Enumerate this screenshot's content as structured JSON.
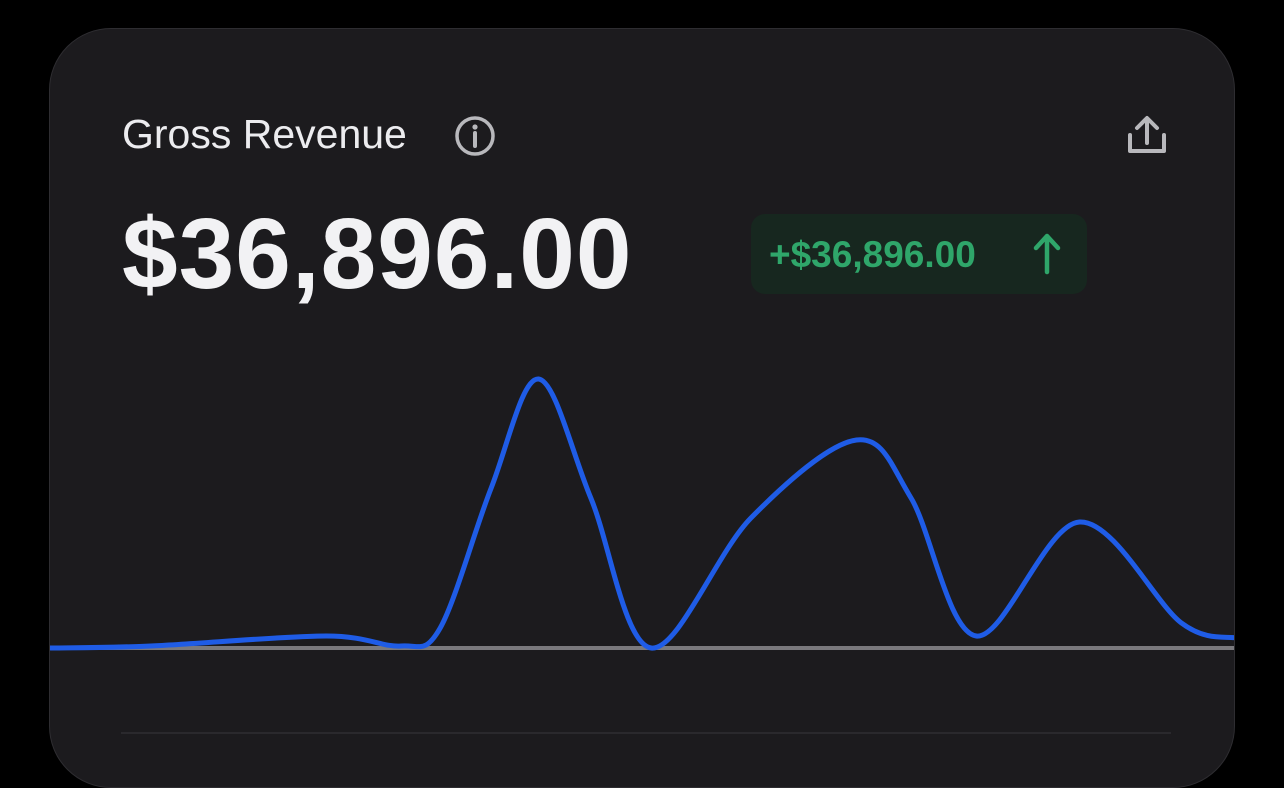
{
  "header": {
    "title": "Gross Revenue"
  },
  "amount": "$36,896.00",
  "change": "+$36,896.00",
  "chart_data": {
    "type": "line",
    "x": [
      0,
      8.5,
      23.3,
      29.6,
      32.9,
      37.2,
      41.2,
      45.6,
      50.7,
      59.1,
      68.0,
      72.6,
      78.1,
      86.8,
      95.4,
      100
    ],
    "series": [
      {
        "color": "#1f5ce6",
        "values": [
          0,
          2,
          12,
          2,
          20,
          160,
          269,
          150,
          0,
          130,
          208,
          150,
          12,
          126,
          25,
          10
        ]
      }
    ],
    "xlim": [
      0,
      100
    ],
    "ylim": [
      0,
      300
    ]
  }
}
